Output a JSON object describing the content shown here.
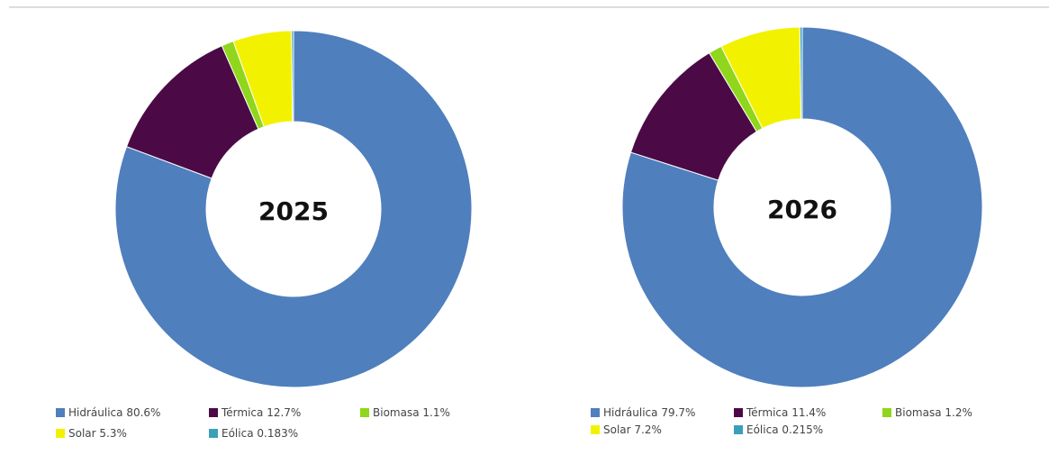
{
  "chart_data": [
    {
      "type": "pie",
      "title": "2025",
      "categories": [
        "Hidráulica",
        "Térmica",
        "Biomasa",
        "Solar",
        "Eólica"
      ],
      "values": [
        80.6,
        12.7,
        1.1,
        5.3,
        0.183
      ],
      "value_labels": [
        "80.6%",
        "12.7%",
        "1.1%",
        "5.3%",
        "0.183%"
      ],
      "colors": [
        "#4f7fbd",
        "#4b0a45",
        "#8fd61c",
        "#f2f200",
        "#3aa0b8"
      ]
    },
    {
      "type": "pie",
      "title": "2026",
      "categories": [
        "Hidráulica",
        "Térmica",
        "Biomasa",
        "Solar",
        "Eólica"
      ],
      "values": [
        79.7,
        11.4,
        1.2,
        7.2,
        0.215
      ],
      "value_labels": [
        "79.7%",
        "11.4%",
        "1.2%",
        "7.2%",
        "0.215%"
      ],
      "colors": [
        "#4f7fbd",
        "#4b0a45",
        "#8fd61c",
        "#f2f200",
        "#3aa0b8"
      ]
    }
  ]
}
